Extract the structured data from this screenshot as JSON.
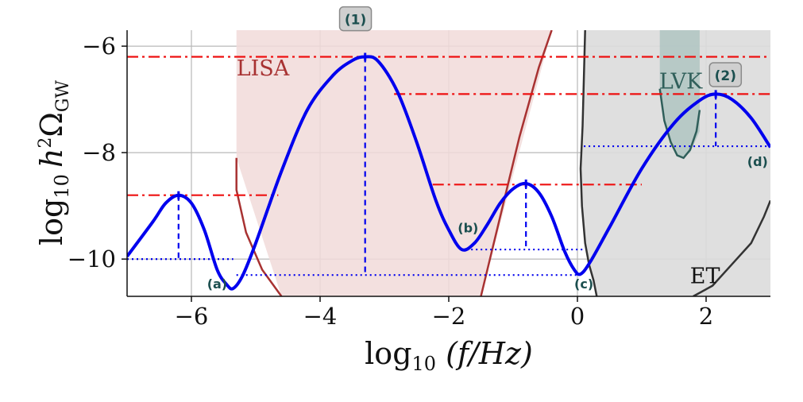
{
  "chart_data": {
    "type": "line",
    "xlabel_parts": {
      "pre": "log",
      "sub": "10",
      "post": " (f/Hz)"
    },
    "ylabel_parts": {
      "pre": "log",
      "sub": "10",
      "h": "h",
      "sup": "2",
      "omega": "Ω",
      "omegasub": "GW"
    },
    "xlim": [
      -7,
      3
    ],
    "ylim": [
      -10.7,
      -5.7
    ],
    "xticks": [
      -6,
      -4,
      -2,
      0,
      2
    ],
    "yticks": [
      -10,
      -8,
      -6
    ],
    "xtick_labels": [
      "−6",
      "−4",
      "−2",
      "0",
      "2"
    ],
    "ytick_labels": [
      "−10",
      "−8",
      "−6"
    ],
    "grid": true,
    "colors": {
      "curve": "#0000ee",
      "dashdot": "#ee1111",
      "lisa_fill": "#f1dad9",
      "lisa_line": "#a83232",
      "gray_fill": "#dcdcdc",
      "lvk_fill": "#b3c6c3",
      "lvk_line": "#2f5f5a",
      "et_line": "#333333",
      "label_box": "#cfcfcf"
    },
    "series": [
      {
        "x": [
          -7.0,
          -6.6,
          -6.4,
          -6.2,
          -6.0,
          -5.8,
          -5.6,
          -5.45,
          -5.35,
          -5.2,
          -5.0,
          -4.6,
          -4.2,
          -3.8,
          -3.5,
          -3.3,
          -3.1,
          -2.8,
          -2.5,
          -2.2,
          -2.0,
          -1.8,
          -1.6,
          -1.4,
          -1.2,
          -1.0,
          -0.8,
          -0.6,
          -0.4,
          -0.2,
          -0.05,
          0.05,
          0.2,
          0.5,
          1.0,
          1.5,
          1.9,
          2.15,
          2.4,
          2.7,
          3.0
        ],
        "y": [
          -9.95,
          -9.3,
          -8.95,
          -8.8,
          -8.95,
          -9.45,
          -10.2,
          -10.48,
          -10.55,
          -10.3,
          -9.7,
          -8.35,
          -7.2,
          -6.55,
          -6.27,
          -6.2,
          -6.28,
          -6.85,
          -7.8,
          -8.9,
          -9.45,
          -9.82,
          -9.7,
          -9.35,
          -8.95,
          -8.68,
          -8.58,
          -8.75,
          -9.2,
          -9.85,
          -10.2,
          -10.28,
          -10.05,
          -9.4,
          -8.3,
          -7.45,
          -7.02,
          -6.9,
          -7.0,
          -7.35,
          -7.9
        ]
      }
    ],
    "dashdot_lines": [
      {
        "y": -6.2,
        "x0": -7.0,
        "x1": 3.0
      },
      {
        "y": -6.9,
        "x0": -2.85,
        "x1": 3.0
      },
      {
        "y": -8.6,
        "x0": -2.25,
        "x1": 1.0
      },
      {
        "y": -8.8,
        "x0": -7.0,
        "x1": -4.65
      }
    ],
    "dashed_verticals": [
      {
        "x": -6.2,
        "y_top": -8.8,
        "y_bottom": -10.0
      },
      {
        "x": -3.3,
        "y_top": -6.2,
        "y_bottom": -10.3
      },
      {
        "x": -0.8,
        "y_top": -8.58,
        "y_bottom": -9.82
      },
      {
        "x": 2.15,
        "y_top": -6.9,
        "y_bottom": -7.88
      }
    ],
    "dotted_lines": [
      {
        "y": -10.0,
        "x0": -7.0,
        "x1": -5.35
      },
      {
        "y": -10.3,
        "x0": -5.3,
        "x1": 0.05
      },
      {
        "y": -9.82,
        "x0": -1.8,
        "x1": 0.1
      },
      {
        "y": -7.88,
        "x0": 0.1,
        "x1": 3.0
      }
    ],
    "regions": [
      {
        "name": "LISA",
        "label": "LISA",
        "x": [
          -5.3,
          -5.3,
          -4.6,
          -1.5,
          -0.4
        ],
        "y": [
          -5.7,
          -8.1,
          -10.7,
          -10.7,
          -5.7
        ]
      },
      {
        "name": "gray",
        "x": [
          0.1,
          0.15,
          0.2,
          0.25,
          0.35,
          3.0,
          3.0,
          2.9,
          2.7,
          2.5,
          2.3,
          2.1,
          1.9,
          1.7,
          1.5,
          1.3,
          1.1,
          0.9,
          0.7,
          0.5,
          0.35,
          0.2,
          0.15,
          0.1,
          0.12,
          0.08,
          0.05,
          0.1,
          0.14,
          0.18
        ],
        "y": [
          -10.7,
          -10.2,
          -9.9,
          -9.7,
          -10.7,
          -10.7,
          -9.3,
          -9.5,
          -9.8,
          -10.1,
          -10.4,
          -10.7,
          -10.7,
          -10.7,
          -10.7,
          -10.7,
          -10.7,
          -10.7,
          -10.7,
          -10.7,
          -10.7,
          -10.7,
          -10.7,
          -10.7,
          -10.7,
          -10.7,
          -10.7,
          -10.7,
          -10.7,
          -10.7
        ]
      },
      {
        "name": "LVK",
        "label": "LVK",
        "x": [
          1.28,
          1.28,
          1.4,
          1.5,
          1.6,
          1.75,
          1.9,
          1.9
        ],
        "y": [
          -5.7,
          -6.8,
          -7.6,
          -7.95,
          -8.1,
          -8.0,
          -7.6,
          -5.7
        ]
      },
      {
        "name": "ET",
        "label": "ET"
      }
    ],
    "lisa_boundary": {
      "x": [
        -5.3,
        -5.3,
        -5.15,
        -4.9,
        -4.6
      ],
      "y": [
        -8.1,
        -8.7,
        -9.5,
        -10.2,
        -10.7
      ]
    },
    "lisa_right": {
      "x": [
        -1.5,
        -1.2,
        -0.9,
        -0.6,
        -0.4
      ],
      "y": [
        -10.7,
        -9.2,
        -7.7,
        -6.4,
        -5.7
      ]
    },
    "et_left": {
      "x": [
        0.12,
        0.1,
        0.08,
        0.05,
        0.07,
        0.12,
        0.18,
        0.25,
        0.3
      ],
      "y": [
        -5.7,
        -6.6,
        -7.5,
        -8.3,
        -9.0,
        -9.7,
        -10.1,
        -10.4,
        -10.7
      ]
    },
    "et_right": {
      "x": [
        1.8,
        2.1,
        2.4,
        2.7,
        2.9,
        3.0
      ],
      "y": [
        -10.7,
        -10.5,
        -10.1,
        -9.7,
        -9.2,
        -8.9
      ]
    },
    "lvk_outline": {
      "x": [
        1.28,
        1.35,
        1.45,
        1.55,
        1.65,
        1.75,
        1.85,
        1.9
      ],
      "y": [
        -6.8,
        -7.4,
        -7.8,
        -8.05,
        -8.1,
        -7.95,
        -7.6,
        -7.2
      ]
    },
    "point_labels": [
      {
        "text": "(a)",
        "x": -5.6,
        "y": -10.55
      },
      {
        "text": "(b)",
        "x": -1.7,
        "y": -9.5
      },
      {
        "text": "(c)",
        "x": 0.1,
        "y": -10.55
      },
      {
        "text": "(d)",
        "x": 2.8,
        "y": -8.25
      }
    ],
    "box_labels": [
      {
        "text": "(1)",
        "x": -3.45,
        "y": -5.5
      },
      {
        "text": "(2)",
        "x": 2.3,
        "y": -6.55
      }
    ]
  }
}
